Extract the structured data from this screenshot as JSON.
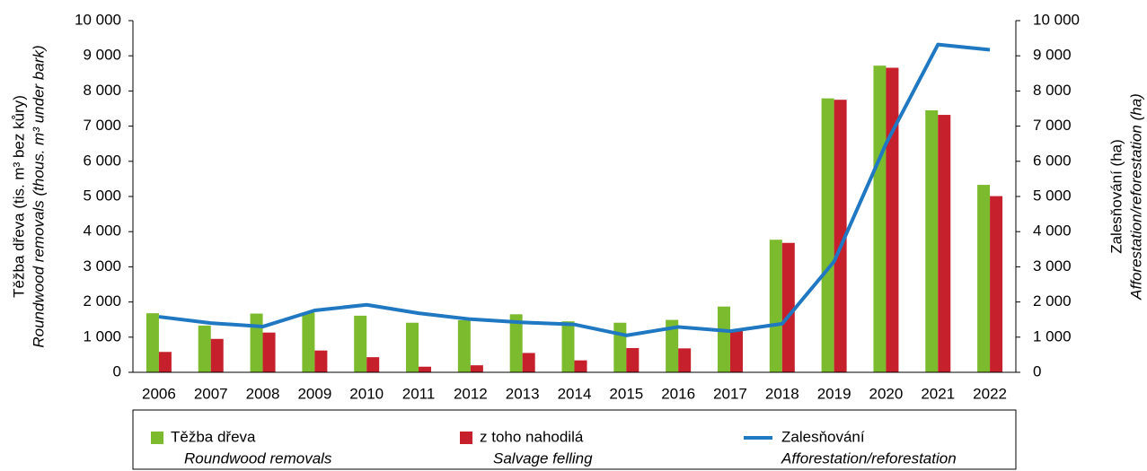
{
  "chart_data": {
    "type": "bar_line",
    "categories": [
      "2006",
      "2007",
      "2008",
      "2009",
      "2010",
      "2011",
      "2012",
      "2013",
      "2014",
      "2015",
      "2016",
      "2017",
      "2018",
      "2019",
      "2020",
      "2021",
      "2022"
    ],
    "series": [
      {
        "name": "Těžba dřeva",
        "name_en": "Roundwood removals",
        "color": "#7cbb2e",
        "type": "bar",
        "values": [
          1680,
          1330,
          1670,
          1700,
          1610,
          1410,
          1480,
          1650,
          1450,
          1410,
          1490,
          1870,
          3770,
          7790,
          8720,
          7450,
          5330
        ]
      },
      {
        "name": "z toho nahodilá",
        "name_en": "Salvage felling",
        "color": "#c5202c",
        "type": "bar",
        "values": [
          580,
          950,
          1130,
          620,
          430,
          160,
          200,
          550,
          340,
          690,
          680,
          1200,
          3680,
          7750,
          8660,
          7320,
          5010
        ]
      },
      {
        "name": "Zalesňování",
        "name_en": "Afforestation/reforestation",
        "color": "#1f78c1",
        "type": "line",
        "axis": "y2",
        "values": [
          1580,
          1400,
          1300,
          1760,
          1920,
          1680,
          1510,
          1420,
          1360,
          1050,
          1290,
          1170,
          1380,
          3150,
          6500,
          9320,
          9170
        ]
      }
    ],
    "y_label": "Těžba dřeva (tis. m³ bez kůry)",
    "y_label_en": "Roundwood removals (thous. m³ under bark)",
    "y2_label": "Zalesňování (ha)",
    "y2_label_en": "Afforestation/reforestation (ha)",
    "ylim": [
      0,
      10000
    ],
    "yticks": [
      0,
      {
        "value": 1000,
        "label": "1 000"
      },
      {
        "value": 2000,
        "label": "2 000"
      },
      {
        "value": 3000,
        "label": "3 000"
      },
      {
        "value": 4000,
        "label": "4 000"
      },
      {
        "value": 5000,
        "label": "5 000"
      },
      {
        "value": 6000,
        "label": "6 000"
      },
      {
        "value": 7000,
        "label": "7 000"
      },
      {
        "value": 8000,
        "label": "8 000"
      },
      {
        "value": 9000,
        "label": "9 000"
      },
      {
        "value": 10000,
        "label": "10 000"
      }
    ],
    "y2lim": [
      0,
      10000
    ],
    "y2ticks": [
      0,
      {
        "value": 1000,
        "label": "1 000"
      },
      {
        "value": 2000,
        "label": "2 000"
      },
      {
        "value": 3000,
        "label": "3 000"
      },
      {
        "value": 4000,
        "label": "4 000"
      },
      {
        "value": 5000,
        "label": "5 000"
      },
      {
        "value": 6000,
        "label": "6 000"
      },
      {
        "value": 7000,
        "label": "7 000"
      },
      {
        "value": 8000,
        "label": "8 000"
      },
      {
        "value": 9000,
        "label": "9 000"
      },
      {
        "value": 10000,
        "label": "10 000"
      }
    ]
  }
}
